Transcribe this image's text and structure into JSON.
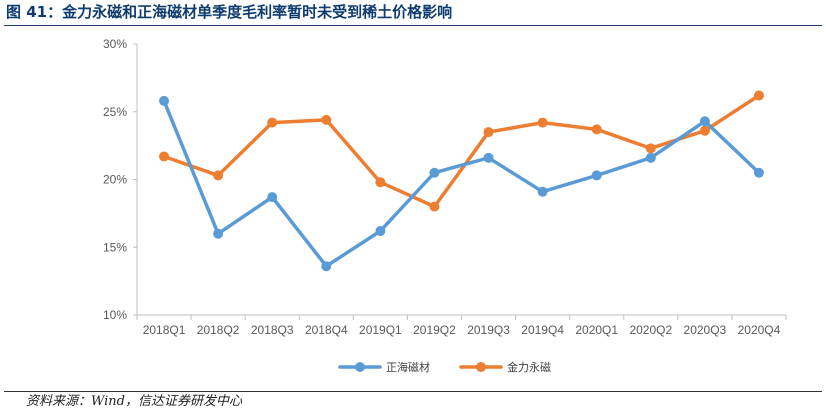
{
  "header": {
    "title": "图 41：金力永磁和正海磁材单季度毛利率暂时未受到稀土价格影响"
  },
  "footer": {
    "source": "资料来源：Wind，信达证券研发中心"
  },
  "chart_data": {
    "type": "line",
    "title": "",
    "xlabel": "",
    "ylabel": "",
    "categories": [
      "2018Q1",
      "2018Q2",
      "2018Q3",
      "2018Q4",
      "2019Q1",
      "2019Q2",
      "2019Q3",
      "2019Q4",
      "2020Q1",
      "2020Q2",
      "2020Q3",
      "2020Q4"
    ],
    "ylim": [
      10,
      30
    ],
    "yticks": [
      10,
      15,
      20,
      25,
      30
    ],
    "ytick_format": "%",
    "grid": false,
    "legend_position": "bottom",
    "series": [
      {
        "name": "正海磁材",
        "color": "#5b9bd5",
        "values": [
          25.8,
          16.0,
          18.7,
          13.6,
          16.2,
          20.5,
          21.6,
          19.1,
          20.3,
          21.6,
          24.3,
          20.5
        ]
      },
      {
        "name": "金力永磁",
        "color": "#ed7d31",
        "values": [
          21.7,
          20.3,
          24.2,
          24.4,
          19.8,
          18.0,
          23.5,
          24.2,
          23.7,
          22.3,
          23.6,
          26.2
        ]
      }
    ]
  }
}
